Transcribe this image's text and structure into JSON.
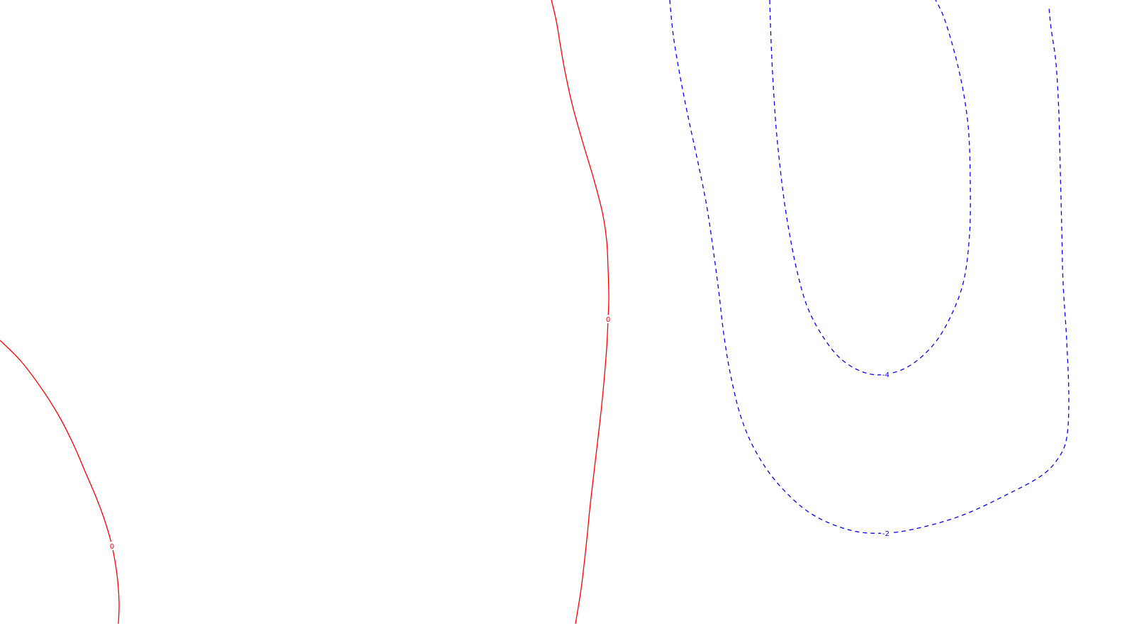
{
  "chart_data": {
    "type": "contour",
    "title": "",
    "xlabel": "",
    "ylabel": "",
    "grid": false,
    "legend": "none",
    "colors": {
      "zero": "#ff0000",
      "negative": "#0000ff",
      "background": "#ffffff"
    },
    "contours": [
      {
        "id": "left-zero",
        "level": 0,
        "label": "0",
        "color": "#ff0000",
        "style": "solid",
        "points": [
          [
            0,
            480
          ],
          [
            30,
            510
          ],
          [
            60,
            550
          ],
          [
            85,
            590
          ],
          [
            105,
            630
          ],
          [
            120,
            665
          ],
          [
            135,
            700
          ],
          [
            148,
            735
          ],
          [
            158,
            770
          ],
          [
            165,
            810
          ],
          [
            168,
            850
          ],
          [
            167,
            880
          ]
        ],
        "label_index": 8
      },
      {
        "id": "center-zero",
        "level": 0,
        "label": "0",
        "color": "#ff0000",
        "style": "solid",
        "points": [
          [
            778,
            0
          ],
          [
            785,
            30
          ],
          [
            790,
            60
          ],
          [
            797,
            100
          ],
          [
            808,
            150
          ],
          [
            822,
            200
          ],
          [
            837,
            250
          ],
          [
            850,
            300
          ],
          [
            856,
            340
          ],
          [
            858,
            380
          ],
          [
            859,
            420
          ],
          [
            858,
            450
          ],
          [
            856,
            490
          ],
          [
            852,
            540
          ],
          [
            847,
            590
          ],
          [
            840,
            650
          ],
          [
            833,
            710
          ],
          [
            827,
            770
          ],
          [
            820,
            830
          ],
          [
            812,
            880
          ]
        ],
        "label_index": 11
      },
      {
        "id": "neg-2",
        "level": -2,
        "label": "-2",
        "color": "#0000ff",
        "style": "dashed",
        "points": [
          [
            945,
            0
          ],
          [
            950,
            50
          ],
          [
            960,
            110
          ],
          [
            972,
            170
          ],
          [
            985,
            230
          ],
          [
            997,
            290
          ],
          [
            1006,
            350
          ],
          [
            1014,
            410
          ],
          [
            1021,
            470
          ],
          [
            1031,
            530
          ],
          [
            1046,
            590
          ],
          [
            1068,
            640
          ],
          [
            1100,
            685
          ],
          [
            1145,
            725
          ],
          [
            1200,
            748
          ],
          [
            1250,
            752
          ],
          [
            1300,
            744
          ],
          [
            1360,
            726
          ],
          [
            1420,
            698
          ],
          [
            1468,
            672
          ],
          [
            1492,
            648
          ],
          [
            1505,
            618
          ],
          [
            1508,
            560
          ],
          [
            1505,
            480
          ],
          [
            1500,
            400
          ],
          [
            1498,
            320
          ],
          [
            1496,
            240
          ],
          [
            1494,
            160
          ],
          [
            1490,
            90
          ],
          [
            1483,
            40
          ],
          [
            1480,
            10
          ]
        ],
        "label_index": 15
      },
      {
        "id": "neg-4",
        "level": -4,
        "label": "-4",
        "color": "#0000ff",
        "style": "dashed",
        "points": [
          [
            1086,
            0
          ],
          [
            1088,
            60
          ],
          [
            1091,
            120
          ],
          [
            1095,
            180
          ],
          [
            1100,
            230
          ],
          [
            1106,
            280
          ],
          [
            1114,
            330
          ],
          [
            1124,
            380
          ],
          [
            1138,
            430
          ],
          [
            1158,
            470
          ],
          [
            1185,
            505
          ],
          [
            1218,
            525
          ],
          [
            1250,
            528
          ],
          [
            1285,
            515
          ],
          [
            1318,
            485
          ],
          [
            1342,
            445
          ],
          [
            1360,
            395
          ],
          [
            1368,
            330
          ],
          [
            1369,
            260
          ],
          [
            1367,
            190
          ],
          [
            1361,
            140
          ],
          [
            1352,
            95
          ],
          [
            1340,
            50
          ],
          [
            1330,
            20
          ],
          [
            1320,
            0
          ]
        ],
        "label_index": 12
      }
    ]
  }
}
